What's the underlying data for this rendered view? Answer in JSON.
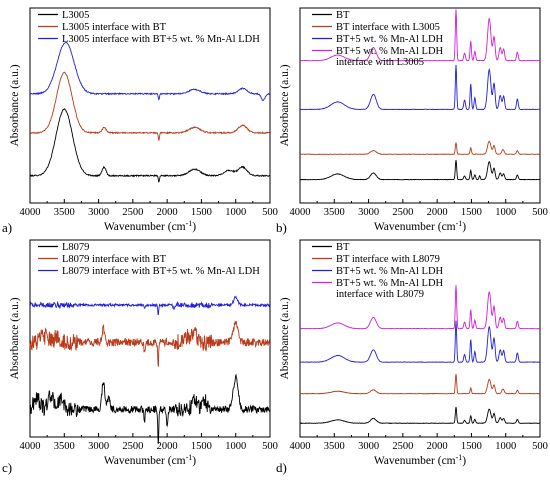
{
  "figure": {
    "panels": [
      {
        "label": "a)"
      },
      {
        "label": "b)"
      },
      {
        "label": "c)"
      },
      {
        "label": "d)"
      }
    ]
  },
  "chart_data": [
    {
      "type": "line",
      "xlabel": "Wavenumber (cm⁻¹)",
      "ylabel": "Absorbance (a.u.)",
      "xlim": [
        4000,
        500
      ],
      "x_reversed": true,
      "x_ticks": [
        4000,
        3500,
        3000,
        2500,
        2000,
        1500,
        1000,
        500
      ],
      "y_ticks_shown": false,
      "legend_position": "top-left",
      "series": [
        {
          "name": "L3005",
          "color": "#000000",
          "peaks": [
            {
              "x": 3500,
              "h": 0.62,
              "w": 170
            },
            {
              "x": 2920,
              "h": 0.08,
              "w": 40
            },
            {
              "x": 1600,
              "h": 0.06,
              "w": 120
            },
            {
              "x": 1100,
              "h": 0.05,
              "w": 100
            },
            {
              "x": 900,
              "h": 0.08,
              "w": 90
            },
            {
              "x": 2120,
              "h": -0.06,
              "w": 12
            }
          ]
        },
        {
          "name": "L3005 interface with BT",
          "color": "#b83a1a",
          "peaks": [
            {
              "x": 3500,
              "h": 0.56,
              "w": 160
            },
            {
              "x": 2920,
              "h": 0.05,
              "w": 40
            },
            {
              "x": 1600,
              "h": 0.05,
              "w": 120
            },
            {
              "x": 900,
              "h": 0.07,
              "w": 90
            },
            {
              "x": 2120,
              "h": -0.07,
              "w": 12
            }
          ]
        },
        {
          "name": "L3005 interface with BT+5 wt. % Mn-Al LDH",
          "color": "#2020d8",
          "peaks": [
            {
              "x": 3480,
              "h": 0.48,
              "w": 175
            },
            {
              "x": 1600,
              "h": 0.04,
              "w": 120
            },
            {
              "x": 900,
              "h": 0.05,
              "w": 90
            },
            {
              "x": 2120,
              "h": -0.06,
              "w": 12
            },
            {
              "x": 600,
              "h": -0.06,
              "w": 40
            }
          ]
        }
      ]
    },
    {
      "type": "line",
      "xlabel": "Wavenumber (cm⁻¹)",
      "ylabel": "Absorbance (a.u.)",
      "xlim": [
        4000,
        500
      ],
      "x_reversed": true,
      "x_ticks": [
        4000,
        3500,
        3000,
        2500,
        2000,
        1500,
        1000,
        500
      ],
      "y_ticks_shown": false,
      "legend_position": "top-right",
      "series": [
        {
          "name": "BT",
          "color": "#000000",
          "peaks": [
            {
              "x": 3450,
              "h": 0.12,
              "w": 140
            },
            {
              "x": 2930,
              "h": 0.14,
              "w": 60
            },
            {
              "x": 1725,
              "h": 0.42,
              "w": 14
            },
            {
              "x": 1600,
              "h": 0.08,
              "w": 18
            },
            {
              "x": 1510,
              "h": 0.2,
              "w": 14
            },
            {
              "x": 1450,
              "h": 0.1,
              "w": 16
            },
            {
              "x": 1380,
              "h": 0.08,
              "w": 14
            },
            {
              "x": 1240,
              "h": 0.38,
              "w": 35
            },
            {
              "x": 1170,
              "h": 0.24,
              "w": 22
            },
            {
              "x": 1080,
              "h": 0.14,
              "w": 25
            },
            {
              "x": 1030,
              "h": 0.12,
              "w": 20
            },
            {
              "x": 830,
              "h": 0.1,
              "w": 18
            }
          ]
        },
        {
          "name": "BT interface with L3005",
          "color": "#b83a1a",
          "peaks": [
            {
              "x": 2930,
              "h": 0.08,
              "w": 60
            },
            {
              "x": 1725,
              "h": 0.25,
              "w": 14
            },
            {
              "x": 1510,
              "h": 0.14,
              "w": 14
            },
            {
              "x": 1240,
              "h": 0.28,
              "w": 35
            },
            {
              "x": 1170,
              "h": 0.18,
              "w": 22
            },
            {
              "x": 1040,
              "h": 0.1,
              "w": 25
            },
            {
              "x": 830,
              "h": 0.08,
              "w": 18
            }
          ]
        },
        {
          "name": "BT+5 wt. % Mn-Al LDH",
          "color": "#2020d8",
          "peaks": [
            {
              "x": 3450,
              "h": 0.16,
              "w": 140
            },
            {
              "x": 2930,
              "h": 0.32,
              "w": 60
            },
            {
              "x": 1725,
              "h": 0.95,
              "w": 14
            },
            {
              "x": 1600,
              "h": 0.2,
              "w": 18
            },
            {
              "x": 1510,
              "h": 0.55,
              "w": 14
            },
            {
              "x": 1450,
              "h": 0.25,
              "w": 16
            },
            {
              "x": 1240,
              "h": 0.85,
              "w": 35
            },
            {
              "x": 1170,
              "h": 0.55,
              "w": 22
            },
            {
              "x": 1080,
              "h": 0.3,
              "w": 25
            },
            {
              "x": 1030,
              "h": 0.28,
              "w": 20
            },
            {
              "x": 830,
              "h": 0.22,
              "w": 18
            }
          ]
        },
        {
          "name": "BT+5 wt. % Mn-Al LDH\ninterface with L3005",
          "color": "#d020d8",
          "peaks": [
            {
              "x": 3450,
              "h": 0.12,
              "w": 140
            },
            {
              "x": 2930,
              "h": 0.28,
              "w": 60
            },
            {
              "x": 1725,
              "h": 1.1,
              "w": 14
            },
            {
              "x": 1600,
              "h": 0.16,
              "w": 18
            },
            {
              "x": 1510,
              "h": 0.42,
              "w": 14
            },
            {
              "x": 1450,
              "h": 0.2,
              "w": 16
            },
            {
              "x": 1240,
              "h": 0.9,
              "w": 35
            },
            {
              "x": 1170,
              "h": 0.5,
              "w": 22
            },
            {
              "x": 1080,
              "h": 0.28,
              "w": 25
            },
            {
              "x": 1030,
              "h": 0.24,
              "w": 20
            },
            {
              "x": 830,
              "h": 0.18,
              "w": 18
            }
          ]
        }
      ]
    },
    {
      "type": "line",
      "xlabel": "Wavenumber (cm⁻¹)",
      "ylabel": "Absorbance (a.u.)",
      "xlim": [
        4000,
        500
      ],
      "x_reversed": true,
      "x_ticks": [
        4000,
        3500,
        3000,
        2500,
        2000,
        1500,
        1000,
        500
      ],
      "y_ticks_shown": false,
      "legend_position": "top-left",
      "series": [
        {
          "name": "L8079",
          "color": "#000000",
          "peaks": [
            {
              "x": 2930,
              "h": 0.42,
              "w": 30
            },
            {
              "x": 2850,
              "h": 0.2,
              "w": 25
            },
            {
              "x": 1600,
              "h": 0.18,
              "w": 50
            },
            {
              "x": 1450,
              "h": 0.15,
              "w": 40
            },
            {
              "x": 1000,
              "h": 0.48,
              "w": 50
            },
            {
              "x": 2130,
              "h": -0.55,
              "w": 10
            },
            {
              "x": 2330,
              "h": -0.18,
              "w": 12
            },
            {
              "x": 2000,
              "h": -0.2,
              "w": 20
            },
            {
              "x": 3900,
              "h": 0.18,
              "w": 60
            },
            {
              "x": 3700,
              "h": 0.2,
              "w": 60
            },
            {
              "x": 3550,
              "h": 0.14,
              "w": 60
            }
          ]
        },
        {
          "name": "L8079 interface with BT",
          "color": "#b83a1a",
          "peaks": [
            {
              "x": 2930,
              "h": 0.2,
              "w": 30
            },
            {
              "x": 1600,
              "h": 0.15,
              "w": 50
            },
            {
              "x": 1000,
              "h": 0.28,
              "w": 50
            },
            {
              "x": 2130,
              "h": -0.34,
              "w": 10
            },
            {
              "x": 2330,
              "h": -0.14,
              "w": 12
            },
            {
              "x": 3800,
              "h": 0.1,
              "w": 70
            },
            {
              "x": 3600,
              "h": 0.08,
              "w": 60
            },
            {
              "x": 1700,
              "h": 0.08,
              "w": 60
            }
          ]
        },
        {
          "name": "L8079 interface with BT+5 wt. % Mn-Al LDH",
          "color": "#2020d8",
          "peaks": [
            {
              "x": 1000,
              "h": 0.12,
              "w": 40
            },
            {
              "x": 2130,
              "h": -0.16,
              "w": 10
            },
            {
              "x": 2330,
              "h": -0.06,
              "w": 12
            },
            {
              "x": 1900,
              "h": -0.05,
              "w": 20
            }
          ]
        }
      ]
    },
    {
      "type": "line",
      "xlabel": "Wavenumber (cm⁻¹)",
      "ylabel": "Absorbance (a.u.)",
      "xlim": [
        4000,
        500
      ],
      "x_reversed": true,
      "x_ticks": [
        4000,
        3500,
        3000,
        2500,
        2000,
        1500,
        1000,
        500
      ],
      "y_ticks_shown": false,
      "legend_position": "top-right",
      "series": [
        {
          "name": "BT",
          "color": "#000000",
          "peaks": [
            {
              "x": 3450,
              "h": 0.07,
              "w": 140
            },
            {
              "x": 2930,
              "h": 0.1,
              "w": 60
            },
            {
              "x": 1725,
              "h": 0.34,
              "w": 14
            },
            {
              "x": 1600,
              "h": 0.06,
              "w": 18
            },
            {
              "x": 1510,
              "h": 0.16,
              "w": 14
            },
            {
              "x": 1450,
              "h": 0.08,
              "w": 16
            },
            {
              "x": 1240,
              "h": 0.3,
              "w": 35
            },
            {
              "x": 1170,
              "h": 0.2,
              "w": 22
            },
            {
              "x": 1080,
              "h": 0.12,
              "w": 25
            },
            {
              "x": 1030,
              "h": 0.1,
              "w": 20
            },
            {
              "x": 830,
              "h": 0.08,
              "w": 18
            }
          ]
        },
        {
          "name": "BT interface with L8079",
          "color": "#b83a1a",
          "peaks": [
            {
              "x": 3450,
              "h": 0.05,
              "w": 140
            },
            {
              "x": 2930,
              "h": 0.08,
              "w": 60
            },
            {
              "x": 1725,
              "h": 0.42,
              "w": 14
            },
            {
              "x": 1510,
              "h": 0.12,
              "w": 14
            },
            {
              "x": 1240,
              "h": 0.3,
              "w": 35
            },
            {
              "x": 1170,
              "h": 0.18,
              "w": 22
            },
            {
              "x": 1040,
              "h": 0.1,
              "w": 25
            },
            {
              "x": 830,
              "h": 0.07,
              "w": 18
            }
          ]
        },
        {
          "name": "BT+5 wt. % Mn-Al LDH",
          "color": "#2020d8",
          "peaks": [
            {
              "x": 3450,
              "h": 0.14,
              "w": 140
            },
            {
              "x": 2930,
              "h": 0.26,
              "w": 60
            },
            {
              "x": 1725,
              "h": 0.88,
              "w": 14
            },
            {
              "x": 1600,
              "h": 0.16,
              "w": 18
            },
            {
              "x": 1510,
              "h": 0.48,
              "w": 14
            },
            {
              "x": 1450,
              "h": 0.22,
              "w": 16
            },
            {
              "x": 1240,
              "h": 0.75,
              "w": 35
            },
            {
              "x": 1170,
              "h": 0.5,
              "w": 22
            },
            {
              "x": 1080,
              "h": 0.26,
              "w": 25
            },
            {
              "x": 1030,
              "h": 0.24,
              "w": 20
            },
            {
              "x": 830,
              "h": 0.2,
              "w": 18
            }
          ]
        },
        {
          "name": "BT+5 wt. % Mn-Al LDH\ninterface with L8079",
          "color": "#d020d8",
          "peaks": [
            {
              "x": 3450,
              "h": 0.12,
              "w": 140
            },
            {
              "x": 2930,
              "h": 0.24,
              "w": 60
            },
            {
              "x": 1725,
              "h": 0.92,
              "w": 14
            },
            {
              "x": 1600,
              "h": 0.14,
              "w": 18
            },
            {
              "x": 1510,
              "h": 0.4,
              "w": 14
            },
            {
              "x": 1450,
              "h": 0.18,
              "w": 16
            },
            {
              "x": 1240,
              "h": 0.78,
              "w": 35
            },
            {
              "x": 1170,
              "h": 0.46,
              "w": 22
            },
            {
              "x": 1080,
              "h": 0.24,
              "w": 25
            },
            {
              "x": 1030,
              "h": 0.22,
              "w": 20
            },
            {
              "x": 830,
              "h": 0.16,
              "w": 18
            }
          ]
        }
      ]
    }
  ]
}
